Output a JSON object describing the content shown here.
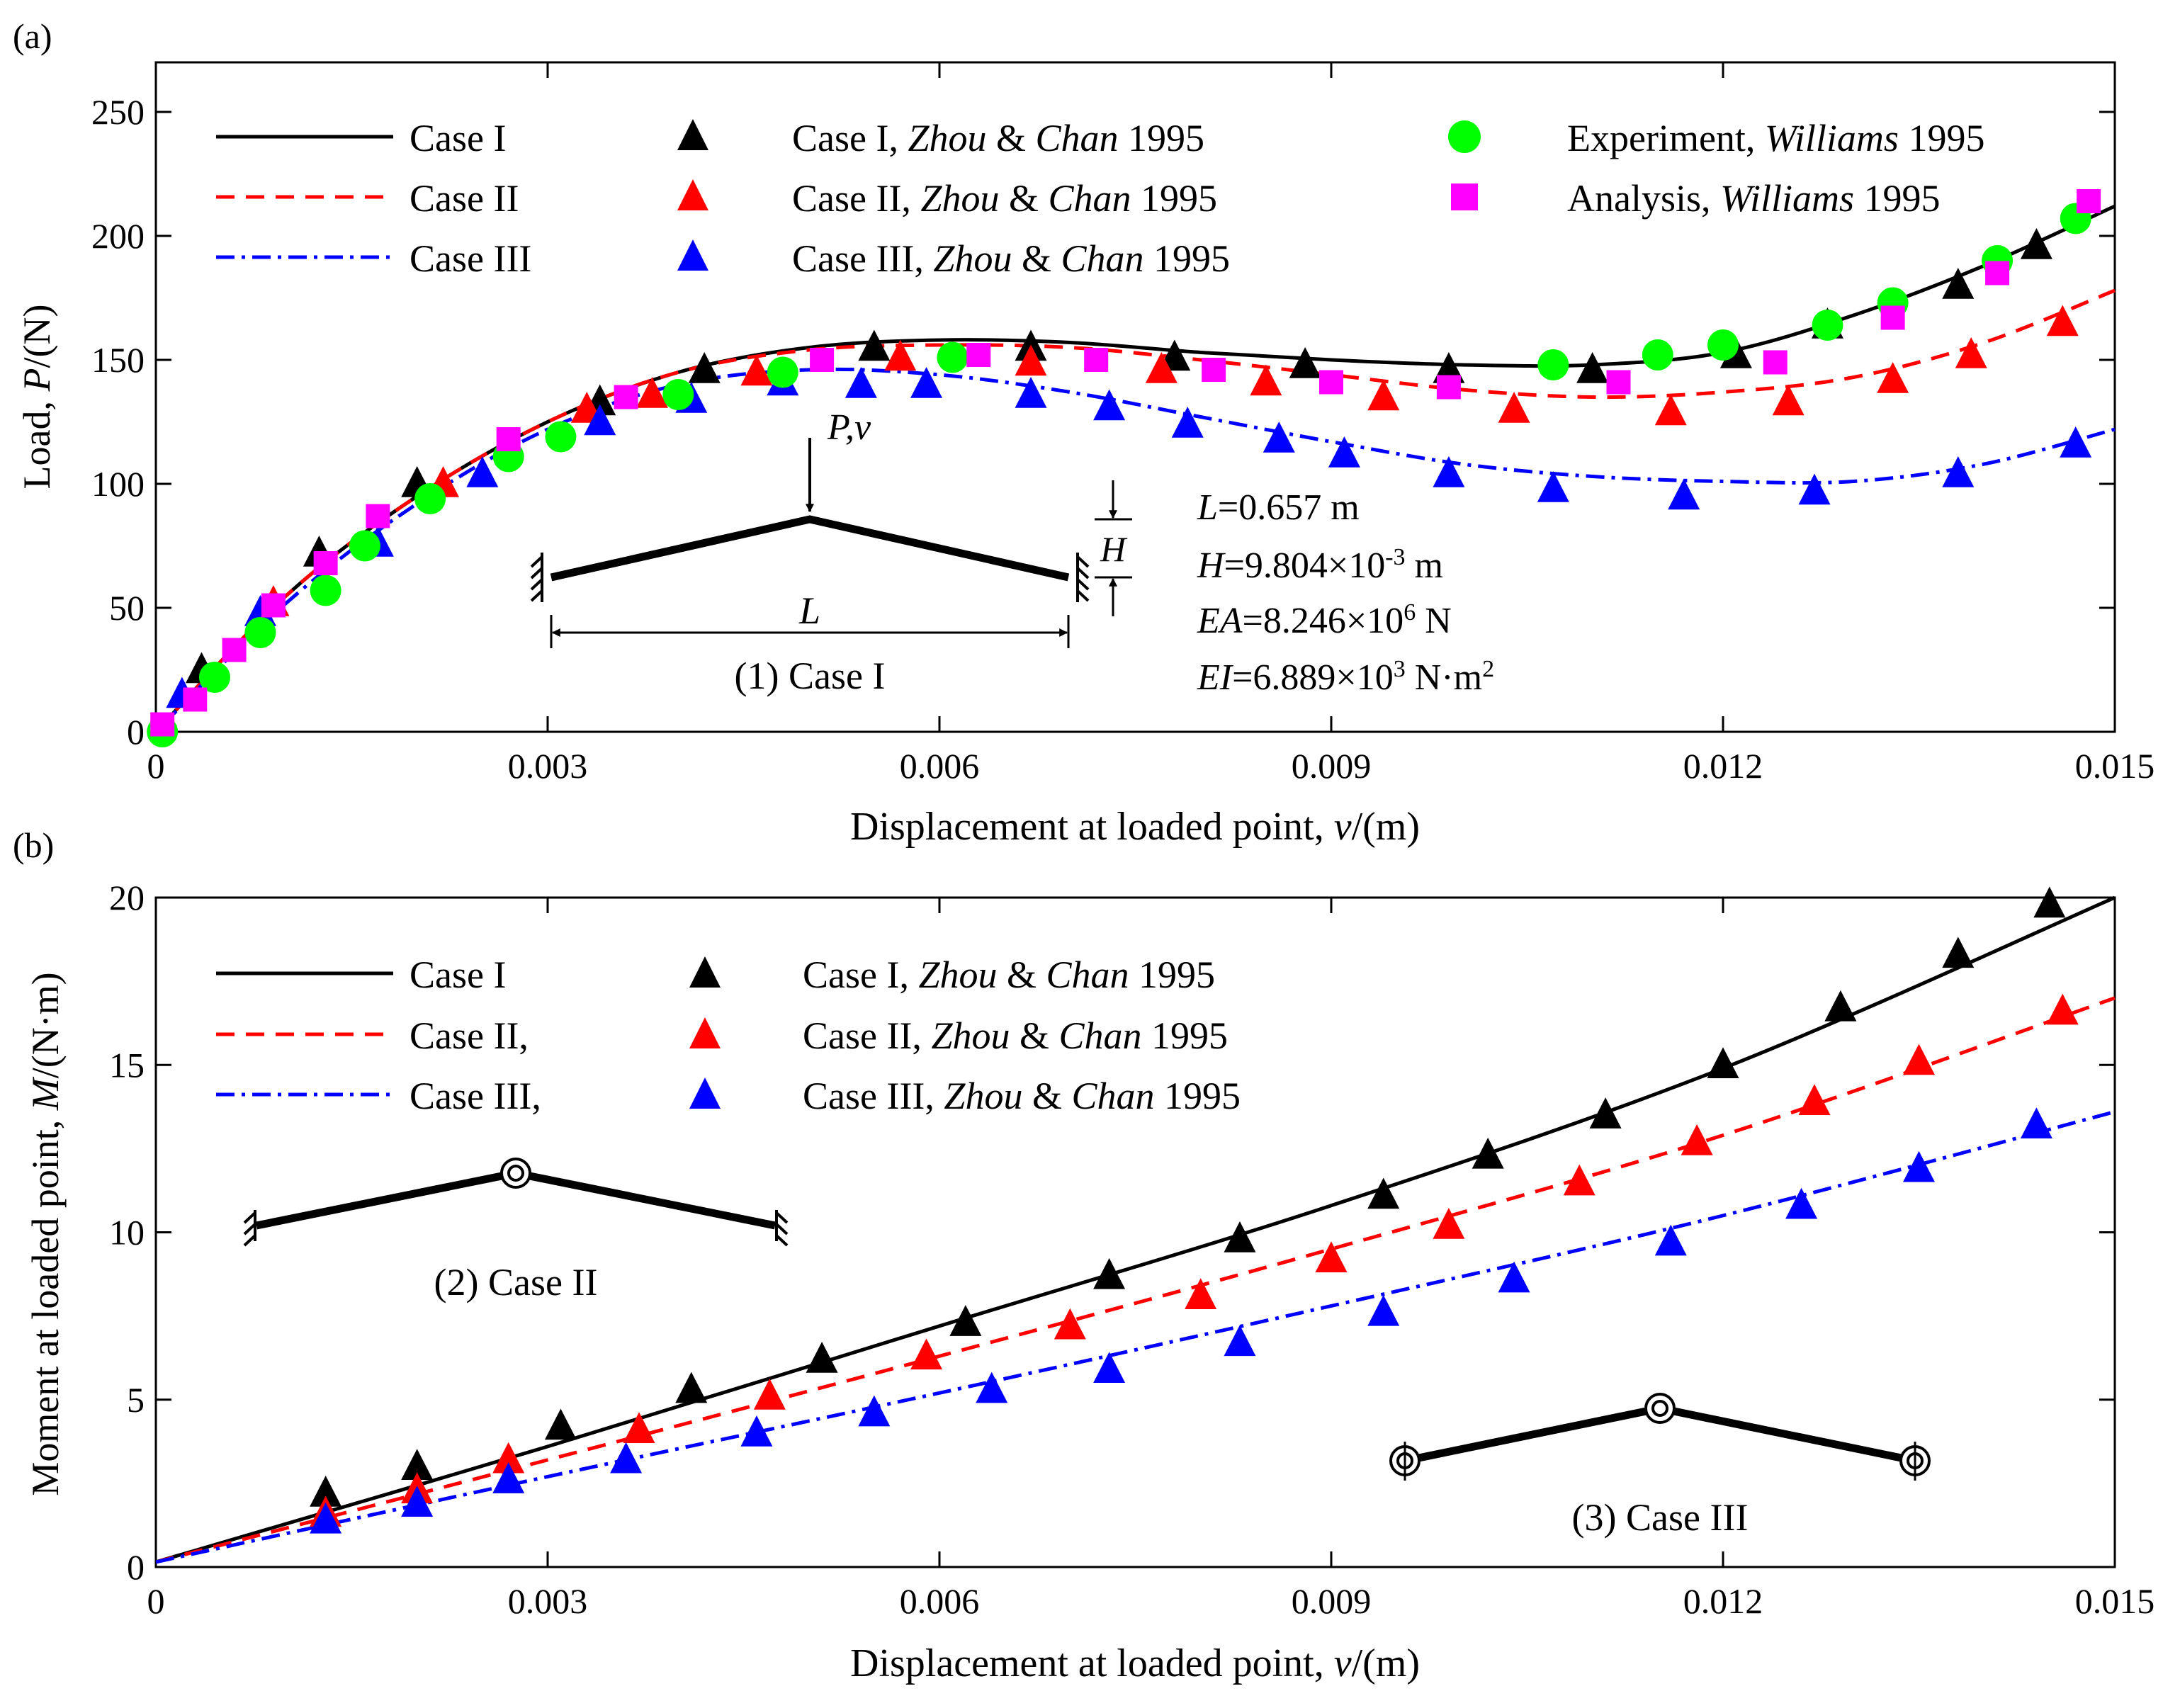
{
  "chart_data": [
    {
      "panel_label": "(a)",
      "type": "line",
      "xlabel": "Displacement at loaded point, v/(m)",
      "xlabel_parts": [
        "Displacement at loaded point, ",
        "v",
        "/(m)"
      ],
      "ylabel": "Load, P/(N)",
      "ylabel_parts": [
        "Load, ",
        "P",
        "/(N)"
      ],
      "xlim": [
        0,
        0.015
      ],
      "ylim": [
        0,
        270
      ],
      "xticks": [
        0,
        0.003,
        0.006,
        0.009,
        0.012,
        0.015
      ],
      "xtick_labels": [
        "0",
        "0.003",
        "0.006",
        "0.009",
        "0.012",
        "0.015"
      ],
      "yticks": [
        0,
        50,
        100,
        150,
        200,
        250
      ],
      "ytick_labels": [
        "0",
        "50",
        "100",
        "150",
        "200",
        "250"
      ],
      "legend": [
        {
          "key": "case1",
          "parts": [
            "Case I"
          ]
        },
        {
          "key": "case2",
          "parts": [
            "Case II"
          ]
        },
        {
          "key": "case3",
          "parts": [
            "Case III"
          ]
        },
        {
          "key": "zc1",
          "parts": [
            "Case I, ",
            "Zhou",
            " & ",
            "Chan",
            " 1995"
          ]
        },
        {
          "key": "zc2",
          "parts": [
            "Case II, ",
            "Zhou",
            " & ",
            "Chan",
            " 1995"
          ]
        },
        {
          "key": "zc3",
          "parts": [
            "Case III, ",
            "Zhou",
            " & ",
            "Chan",
            " 1995"
          ]
        },
        {
          "key": "exp",
          "parts": [
            "Experiment, ",
            "Williams",
            " 1995"
          ]
        },
        {
          "key": "ana",
          "parts": [
            "Analysis, ",
            "Williams",
            " 1995"
          ]
        }
      ],
      "series": [
        {
          "key": "case1",
          "name": "Case I",
          "kind": "line",
          "style": "solid",
          "color": "#000000",
          "x": [
            0,
            0.001,
            0.002,
            0.003,
            0.004,
            0.005,
            0.006,
            0.007,
            0.008,
            0.009,
            0.01,
            0.011,
            0.012,
            0.013,
            0.014,
            0.015
          ],
          "y": [
            0,
            55,
            95,
            125,
            145,
            155,
            158,
            157,
            153,
            150,
            148,
            148,
            153,
            168,
            188,
            212
          ]
        },
        {
          "key": "case2",
          "name": "Case II",
          "kind": "line",
          "style": "dashed",
          "color": "#ff0000",
          "x": [
            0,
            0.001,
            0.002,
            0.003,
            0.004,
            0.005,
            0.006,
            0.007,
            0.008,
            0.009,
            0.01,
            0.011,
            0.012,
            0.013,
            0.014,
            0.015
          ],
          "y": [
            0,
            55,
            95,
            125,
            145,
            154,
            156,
            155,
            150,
            144,
            138,
            135,
            137,
            143,
            157,
            178
          ]
        },
        {
          "key": "case3",
          "name": "Case III",
          "kind": "line",
          "style": "dashdot",
          "color": "#0000ff",
          "x": [
            0,
            0.001,
            0.002,
            0.003,
            0.004,
            0.005,
            0.006,
            0.007,
            0.008,
            0.009,
            0.01,
            0.011,
            0.012,
            0.013,
            0.014,
            0.015
          ],
          "y": [
            0,
            52,
            92,
            122,
            140,
            146,
            144,
            137,
            127,
            117,
            108,
            103,
            101,
            101,
            108,
            122
          ]
        },
        {
          "key": "zc1",
          "name": "Case I, Zhou & Chan 1995",
          "kind": "triangle",
          "color": "#000000",
          "x": [
            0.00035,
            0.00125,
            0.002,
            0.0034,
            0.0042,
            0.0055,
            0.0067,
            0.0078,
            0.0088,
            0.0099,
            0.011,
            0.0121,
            0.0128,
            0.0138,
            0.0144
          ],
          "y": [
            25,
            72,
            100,
            133,
            146,
            155,
            155,
            151,
            148,
            146,
            146,
            152,
            164,
            180,
            196
          ]
        },
        {
          "key": "zc2",
          "name": "Case II, Zhou & Chan 1995",
          "kind": "triangle",
          "color": "#ff0000",
          "x": [
            0.0009,
            0.0022,
            0.0033,
            0.0038,
            0.0046,
            0.0057,
            0.0067,
            0.0077,
            0.0085,
            0.0094,
            0.0104,
            0.0116,
            0.0125,
            0.0133,
            0.0139,
            0.0146
          ],
          "y": [
            52,
            100,
            130,
            136,
            145,
            151,
            149,
            146,
            141,
            135,
            130,
            129,
            133,
            142,
            152,
            165
          ]
        },
        {
          "key": "zc3",
          "name": "Case III, Zhou & Chan 1995",
          "kind": "triangle",
          "color": "#0000ff",
          "x": [
            0.0002,
            0.0008,
            0.0017,
            0.0025,
            0.0034,
            0.0041,
            0.0048,
            0.0054,
            0.0059,
            0.0067,
            0.0073,
            0.0079,
            0.0086,
            0.0091,
            0.0099,
            0.0107,
            0.0117,
            0.0127,
            0.0138,
            0.0147
          ],
          "y": [
            15,
            48,
            76,
            104,
            125,
            134,
            141,
            140,
            140,
            136,
            131,
            124,
            118,
            112,
            104,
            98,
            95,
            97,
            104,
            116
          ]
        },
        {
          "key": "exp",
          "name": "Experiment, Williams 1995",
          "kind": "circle",
          "color": "#00ff00",
          "x": [
            5e-05,
            0.00045,
            0.0008,
            0.0013,
            0.0016,
            0.0021,
            0.0027,
            0.0031,
            0.004,
            0.0048,
            0.0061,
            0.0107,
            0.0115,
            0.012,
            0.0128,
            0.0133,
            0.0141,
            0.0147
          ],
          "y": [
            0,
            22,
            40,
            57,
            75,
            94,
            111,
            119,
            136,
            145,
            151,
            148,
            152,
            156,
            164,
            173,
            190,
            207
          ]
        },
        {
          "key": "ana",
          "name": "Analysis, Williams 1995",
          "kind": "square",
          "color": "#ff00ff",
          "x": [
            5e-05,
            0.0003,
            0.0006,
            0.0009,
            0.0013,
            0.0017,
            0.0027,
            0.0036,
            0.0051,
            0.0063,
            0.0072,
            0.0081,
            0.009,
            0.0099,
            0.0112,
            0.0124,
            0.0133,
            0.0141,
            0.0148
          ],
          "y": [
            3,
            13,
            33,
            51,
            68,
            87,
            118,
            135,
            150,
            152,
            150,
            146,
            141,
            139,
            141,
            149,
            167,
            185,
            214
          ]
        }
      ],
      "annotations": {
        "load_label": "P,v",
        "span_label": "L",
        "height_label": "H",
        "caption": "(1) Case I",
        "params": [
          {
            "var": "L",
            "value": "=0.657 m"
          },
          {
            "var": "H",
            "value": "=9.804×10",
            "exp": "-3",
            "unit": " m"
          },
          {
            "var": "EA",
            "value": "=8.246×10",
            "exp": "6",
            "unit": " N"
          },
          {
            "var": "EI",
            "value": "=6.889×10",
            "exp": "3",
            "unit": " N·m",
            "unit_exp": "2"
          }
        ]
      }
    },
    {
      "panel_label": "(b)",
      "type": "line",
      "xlabel": "Displacement at loaded point, v/(m)",
      "xlabel_parts": [
        "Displacement at loaded point, ",
        "v",
        "/(m)"
      ],
      "ylabel": "Moment at loaded point, M/(N·m)",
      "ylabel_parts": [
        "Moment at loaded point, ",
        "M",
        "/(N·m)"
      ],
      "xlim": [
        0,
        0.015
      ],
      "ylim": [
        0,
        20
      ],
      "xticks": [
        0,
        0.003,
        0.006,
        0.009,
        0.012,
        0.015
      ],
      "xtick_labels": [
        "0",
        "0.003",
        "0.006",
        "0.009",
        "0.012",
        "0.015"
      ],
      "yticks": [
        0,
        5,
        10,
        15,
        20
      ],
      "ytick_labels": [
        "0",
        "5",
        "10",
        "15",
        "20"
      ],
      "legend": [
        {
          "key": "case1",
          "parts": [
            "Case I"
          ]
        },
        {
          "key": "case2",
          "parts": [
            "Case II,"
          ]
        },
        {
          "key": "case3",
          "parts": [
            "Case III,"
          ]
        },
        {
          "key": "zc1",
          "parts": [
            "Case I, ",
            "Zhou",
            " & ",
            "Chan",
            " 1995"
          ]
        },
        {
          "key": "zc2",
          "parts": [
            "Case II, ",
            "Zhou",
            " & ",
            "Chan",
            " 1995"
          ]
        },
        {
          "key": "zc3",
          "parts": [
            "Case III, ",
            "Zhou",
            " & ",
            "Chan",
            " 1995"
          ]
        }
      ],
      "series": [
        {
          "key": "case1",
          "name": "Case I",
          "kind": "line",
          "style": "solid",
          "color": "#000000",
          "x": [
            0,
            0.003,
            0.006,
            0.009,
            0.012,
            0.015
          ],
          "y": [
            0.15,
            3.6,
            7.2,
            10.8,
            14.9,
            20.0
          ]
        },
        {
          "key": "case2",
          "name": "Case II,",
          "kind": "line",
          "style": "dashed",
          "color": "#ff0000",
          "x": [
            0,
            0.003,
            0.006,
            0.009,
            0.012,
            0.015
          ],
          "y": [
            0.15,
            3.2,
            6.3,
            9.5,
            12.9,
            17.0
          ]
        },
        {
          "key": "case3",
          "name": "Case III,",
          "kind": "line",
          "style": "dashdot",
          "color": "#0000ff",
          "x": [
            0,
            0.003,
            0.006,
            0.009,
            0.012,
            0.015
          ],
          "y": [
            0.15,
            2.7,
            5.2,
            7.8,
            10.5,
            13.6
          ]
        },
        {
          "key": "zc1",
          "name": "Case I, Zhou & Chan 1995",
          "kind": "triangle",
          "color": "#000000",
          "x": [
            0.0013,
            0.002,
            0.0031,
            0.0041,
            0.0051,
            0.0062,
            0.0073,
            0.0083,
            0.0094,
            0.0102,
            0.0111,
            0.012,
            0.0129,
            0.0138,
            0.0145
          ],
          "y": [
            2.2,
            3.0,
            4.2,
            5.3,
            6.2,
            7.3,
            8.7,
            9.8,
            11.1,
            12.3,
            13.5,
            15.0,
            16.7,
            18.3,
            19.8
          ]
        },
        {
          "key": "zc2",
          "name": "Case II, Zhou & Chan 1995",
          "kind": "triangle",
          "color": "#ff0000",
          "x": [
            0.0013,
            0.002,
            0.0027,
            0.0037,
            0.0047,
            0.0059,
            0.007,
            0.008,
            0.009,
            0.0099,
            0.0109,
            0.0118,
            0.0127,
            0.0135,
            0.0146
          ],
          "y": [
            1.6,
            2.3,
            3.2,
            4.1,
            5.1,
            6.3,
            7.2,
            8.1,
            9.2,
            10.2,
            11.5,
            12.7,
            13.9,
            15.1,
            16.6
          ]
        },
        {
          "key": "zc3",
          "name": "Case III, Zhou & Chan 1995",
          "kind": "triangle",
          "color": "#0000ff",
          "x": [
            0.0013,
            0.002,
            0.0027,
            0.0036,
            0.0046,
            0.0055,
            0.0064,
            0.0073,
            0.0083,
            0.0094,
            0.0104,
            0.0116,
            0.0126,
            0.0135,
            0.0144
          ],
          "y": [
            1.4,
            1.9,
            2.6,
            3.2,
            4.0,
            4.6,
            5.3,
            5.9,
            6.7,
            7.6,
            8.6,
            9.7,
            10.8,
            11.9,
            13.2
          ]
        }
      ],
      "annotations": {
        "caption_case2": "(2) Case II",
        "caption_case3": "(3) Case III"
      }
    }
  ]
}
